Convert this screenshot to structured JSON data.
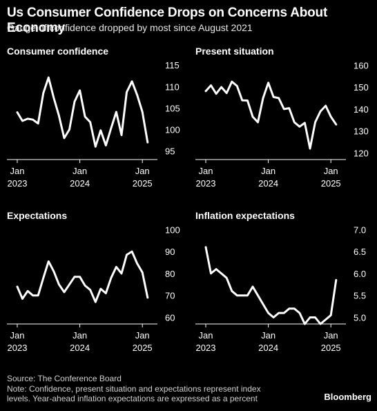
{
  "header": {
    "title": "Us Consumer Confidence Drops on Concerns About Economy",
    "subtitle": "Gauge of confidence dropped by most since August 2021"
  },
  "footer": {
    "source": "Source: The Conference Board",
    "note_line1": "Note: Confidence, present situation and expectations represent index",
    "note_line2": "levels. Year-ahead inflation expectations are expressed as a percent",
    "logo": "Bloomberg"
  },
  "colors": {
    "background": "#000000",
    "line": "#ffffff",
    "axis": "#ffffff"
  },
  "chart_data": [
    {
      "type": "line",
      "title": "Consumer confidence",
      "x_labels": [
        [
          "Jan",
          "2023"
        ],
        [
          "Jan",
          "2024"
        ],
        [
          "Jan",
          "2025"
        ]
      ],
      "x_label_months": [
        0,
        12,
        24
      ],
      "yticks": [
        95,
        100,
        105,
        110,
        115
      ],
      "ylim": [
        93,
        116
      ],
      "y_axis_side": "right",
      "series": [
        {
          "values": [
            104.0,
            102.0,
            102.5,
            102.3,
            101.4,
            108.5,
            112.1,
            107.4,
            103.2,
            98.0,
            100.0,
            106.5,
            109.1,
            103.0,
            101.7,
            96.0,
            99.8,
            96.3,
            100.3,
            104.1,
            98.7,
            108.7,
            111.2,
            108.0,
            104.1,
            97.0
          ]
        }
      ],
      "grid": false
    },
    {
      "type": "line",
      "title": "Present situation",
      "x_labels": [
        [
          "Jan",
          "2023"
        ],
        [
          "Jan",
          "2024"
        ],
        [
          "Jan",
          "2025"
        ]
      ],
      "x_label_months": [
        0,
        12,
        24
      ],
      "yticks": [
        120,
        130,
        140,
        150,
        160
      ],
      "ylim": [
        117,
        162
      ],
      "y_axis_side": "right",
      "series": [
        {
          "values": [
            148.2,
            150.8,
            147.0,
            150.0,
            147.3,
            152.5,
            150.5,
            144.0,
            143.9,
            136.5,
            134.0,
            145.0,
            152.0,
            145.5,
            145.0,
            140.0,
            140.4,
            134.0,
            132.0,
            133.7,
            122.0,
            134.0,
            139.0,
            141.5,
            136.5,
            133.0
          ]
        }
      ],
      "grid": false
    },
    {
      "type": "line",
      "title": "Expectations",
      "x_labels": [
        [
          "Jan",
          "2023"
        ],
        [
          "Jan",
          "2024"
        ],
        [
          "Jan",
          "2025"
        ]
      ],
      "x_label_months": [
        0,
        12,
        24
      ],
      "yticks": [
        60,
        70,
        80,
        90,
        100
      ],
      "ylim": [
        57,
        102
      ],
      "y_axis_side": "right",
      "series": [
        {
          "values": [
            74.0,
            68.5,
            72.0,
            70.0,
            70.0,
            78.0,
            85.5,
            81.0,
            75.0,
            71.5,
            75.0,
            78.5,
            78.5,
            74.5,
            72.5,
            67.0,
            73.0,
            71.0,
            78.0,
            83.0,
            80.0,
            88.5,
            90.0,
            84.5,
            80.5,
            69.0
          ]
        }
      ],
      "grid": false
    },
    {
      "type": "line",
      "title": "Inflation expectations",
      "x_labels": [
        [
          "Jan",
          "2023"
        ],
        [
          "Jan",
          "2024"
        ],
        [
          "Jan",
          "2025"
        ]
      ],
      "x_label_months": [
        0,
        12,
        24
      ],
      "yticks": [
        "5.0",
        "5.5",
        "6.0",
        "6.5",
        "7.0"
      ],
      "ylim": [
        4.85,
        7.1
      ],
      "y_axis_side": "right",
      "series": [
        {
          "values": [
            6.6,
            6.0,
            6.1,
            6.0,
            5.9,
            5.6,
            5.5,
            5.5,
            5.5,
            5.7,
            5.5,
            5.3,
            5.1,
            5.0,
            5.1,
            5.1,
            5.2,
            5.2,
            5.1,
            4.85,
            5.0,
            5.0,
            4.85,
            4.95,
            5.05,
            5.85
          ]
        }
      ],
      "grid": false
    }
  ]
}
